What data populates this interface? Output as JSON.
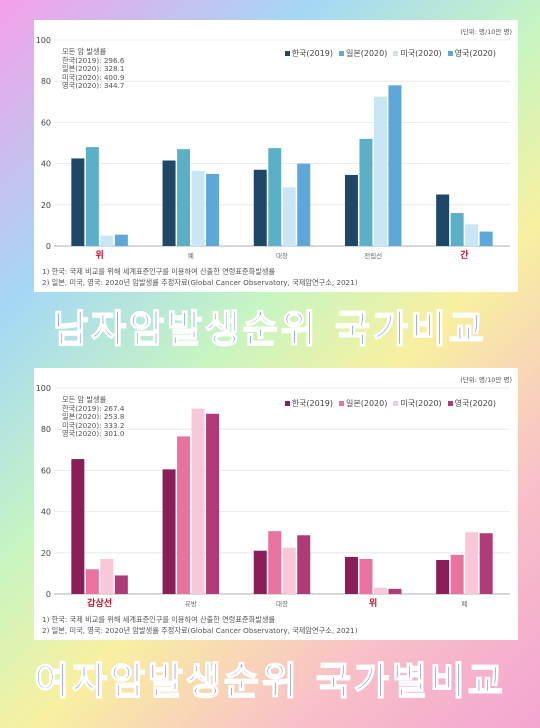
{
  "chart_data": [
    {
      "type": "bar",
      "unit_label": "(단위: 명/10만 명)",
      "ylim": [
        0,
        100
      ],
      "yticks": [
        0,
        20,
        40,
        60,
        80,
        100
      ],
      "grid": true,
      "legend_position": "top-right",
      "categories": [
        "위",
        "폐",
        "대장",
        "전립선",
        "간"
      ],
      "highlight_categories": [
        "위",
        "간"
      ],
      "series": [
        {
          "name": "한국(2019)",
          "color": "#1f4868",
          "values": [
            42.5,
            41.5,
            37.0,
            34.5,
            25.0
          ]
        },
        {
          "name": "일본(2020)",
          "color": "#5bb0c8",
          "values": [
            48.0,
            47.0,
            47.5,
            52.0,
            16.0
          ]
        },
        {
          "name": "미국(2020)",
          "color": "#c8e6f5",
          "values": [
            5.0,
            36.5,
            28.5,
            72.5,
            10.5
          ]
        },
        {
          "name": "영국(2020)",
          "color": "#5da8d8",
          "values": [
            5.5,
            35.0,
            40.0,
            78.0,
            7.0
          ]
        }
      ],
      "stats_title": "모든 암 발생률",
      "stats_lines": [
        "한국(2019): 296.6",
        "일본(2020): 328.1",
        "미국(2020): 400.9",
        "영국(2020): 344.7"
      ],
      "notes": [
        "1) 한국: 국제 비교를 위해 세계표준인구를 이용하여 산출한 연령표준화발생률",
        "2) 일본, 미국, 영국: 2020년 암발생률 추정자료(Global Cancer Observatory, 국제암연구소, 2021)"
      ]
    },
    {
      "type": "bar",
      "unit_label": "(단위: 명/10만 명)",
      "ylim": [
        0,
        100
      ],
      "yticks": [
        0,
        20,
        40,
        60,
        80,
        100
      ],
      "grid": true,
      "legend_position": "top-right",
      "categories": [
        "갑상선",
        "유방",
        "대장",
        "위",
        "폐"
      ],
      "highlight_categories": [
        "갑상선",
        "위"
      ],
      "series": [
        {
          "name": "한국(2019)",
          "color": "#8b1e58",
          "values": [
            65.5,
            60.5,
            21.0,
            18.0,
            16.5
          ]
        },
        {
          "name": "일본(2020)",
          "color": "#e8739f",
          "values": [
            12.0,
            76.5,
            30.5,
            17.0,
            19.0
          ]
        },
        {
          "name": "미국(2020)",
          "color": "#f8c8d8",
          "values": [
            17.0,
            90.0,
            22.5,
            3.0,
            30.0
          ]
        },
        {
          "name": "영국(2020)",
          "color": "#b03a78",
          "values": [
            9.0,
            87.5,
            28.5,
            2.5,
            29.5
          ]
        }
      ],
      "stats_title": "모든 암 발생률",
      "stats_lines": [
        "한국(2019): 267.4",
        "일본(2020): 253.8",
        "미국(2020): 333.2",
        "영국(2020): 301.0"
      ],
      "notes": [
        "1) 한국: 국제 비교를 위해 세계표준인구를 이용하여 산출한 연령표준화발생률",
        "2) 일본, 미국, 영국: 2020년 암발생률 추정자료(Global Cancer Observatory, 국제암연구소, 2021)"
      ]
    }
  ],
  "banners": {
    "top": "남자암발생순위 국가비교",
    "bottom": "여자암발생순위 국가별비교"
  },
  "colors": {
    "banner_text": "#1a45e6",
    "highlight_label": "#c8102e"
  }
}
